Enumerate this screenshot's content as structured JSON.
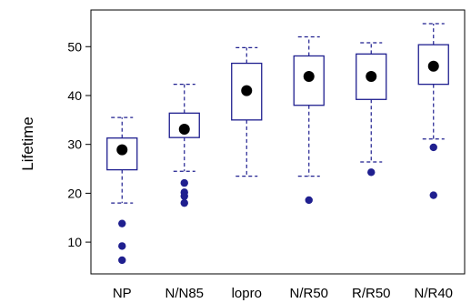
{
  "chart_data": {
    "type": "box",
    "ylabel": "Lifetime",
    "xlabel": "",
    "ylim": [
      3.5,
      57.5
    ],
    "yticks": [
      10,
      20,
      30,
      40,
      50
    ],
    "categories": [
      "NP",
      "N/N85",
      "lopro",
      "N/R50",
      "R/R50",
      "N/R40"
    ],
    "boxes": [
      {
        "name": "NP",
        "whisker_low": 18.0,
        "q1": 24.8,
        "q3": 31.3,
        "whisker_high": 35.5,
        "center": 28.9,
        "outliers": [
          13.8,
          9.2,
          6.3
        ]
      },
      {
        "name": "N/N85",
        "whisker_low": 24.5,
        "q1": 31.4,
        "q3": 36.4,
        "whisker_high": 42.3,
        "center": 33.1,
        "outliers": [
          22.1,
          20.2,
          19.4,
          18.0
        ]
      },
      {
        "name": "lopro",
        "whisker_low": 23.5,
        "q1": 35.0,
        "q3": 46.6,
        "whisker_high": 49.8,
        "center": 41.0,
        "outliers": []
      },
      {
        "name": "N/R50",
        "whisker_low": 23.5,
        "q1": 38.0,
        "q3": 48.1,
        "whisker_high": 52.0,
        "center": 43.9,
        "outliers": [
          18.6
        ]
      },
      {
        "name": "R/R50",
        "whisker_low": 26.4,
        "q1": 39.2,
        "q3": 48.5,
        "whisker_high": 50.8,
        "center": 43.9,
        "outliers": [
          24.3
        ]
      },
      {
        "name": "N/R40",
        "whisker_low": 31.1,
        "q1": 42.3,
        "q3": 50.4,
        "whisker_high": 54.7,
        "center": 46.0,
        "outliers": [
          29.4,
          19.6
        ]
      }
    ],
    "colors": {
      "box": "#1f1f8f",
      "outlier": "#1f1f8f",
      "center": "#000000",
      "frame": "#000000"
    },
    "grid": false,
    "legend": "none"
  }
}
